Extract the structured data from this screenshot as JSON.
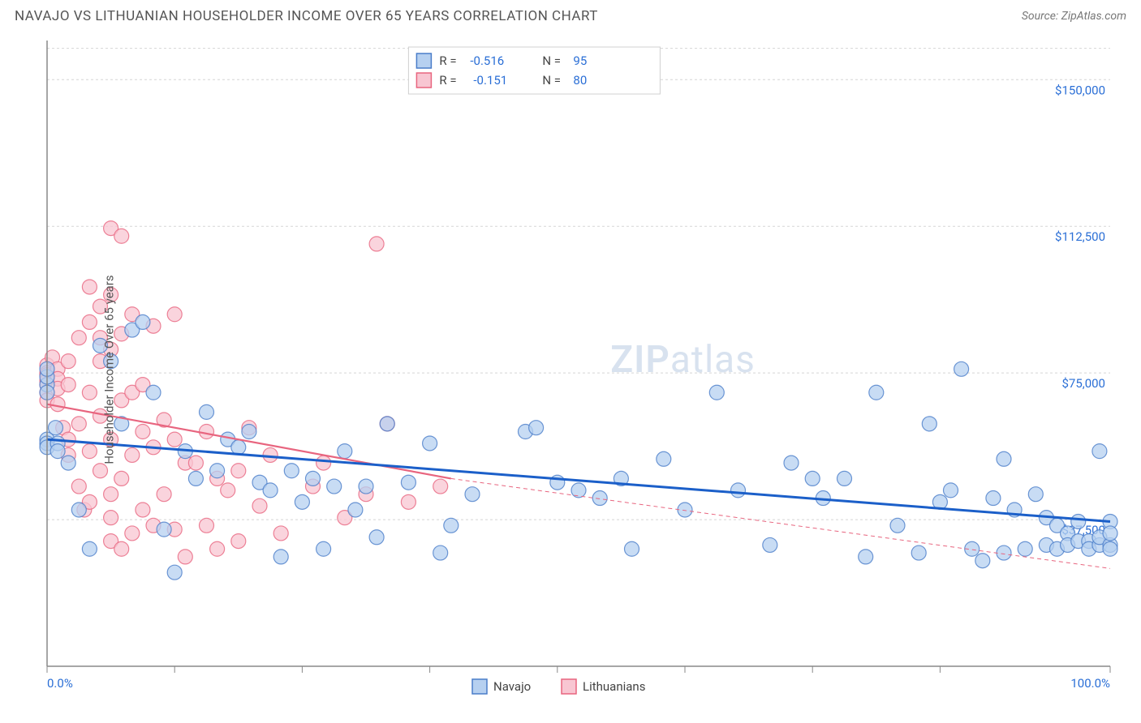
{
  "title": "NAVAJO VS LITHUANIAN HOUSEHOLDER INCOME OVER 65 YEARS CORRELATION CHART",
  "source": "Source: ZipAtlas.com",
  "ylabel": "Householder Income Over 65 years",
  "watermark": {
    "part1": "ZIP",
    "part2": "atlas"
  },
  "chart": {
    "type": "scatter",
    "xlim": [
      0,
      100
    ],
    "ylim": [
      0,
      160000
    ],
    "x_ticks": [
      0,
      12,
      24,
      36,
      48,
      60,
      72,
      84,
      100
    ],
    "x_tick_labels_show": {
      "0": "0.0%",
      "100": "100.0%"
    },
    "y_gridlines": [
      37500,
      75000,
      112500,
      150000
    ],
    "y_top_grid": 158000,
    "y_tick_labels": {
      "37500": "$37,500",
      "75000": "$75,000",
      "112500": "$112,500",
      "150000": "$150,000"
    },
    "background_color": "#ffffff",
    "grid_color": "#d5d5d5",
    "axis_color": "#888888",
    "marker_radius": 9,
    "series": [
      {
        "name": "Navajo",
        "color_fill": "#b6d0f0",
        "color_stroke": "#4a7dc9",
        "R": "-0.516",
        "N": "95",
        "trend": {
          "x1": 0,
          "y1": 58000,
          "x2": 100,
          "y2": 37000,
          "color": "#1b5fc9",
          "width": 3
        },
        "points": [
          [
            0,
            58000
          ],
          [
            0,
            57000
          ],
          [
            0,
            56000
          ],
          [
            0,
            72000
          ],
          [
            0,
            74000
          ],
          [
            0,
            76000
          ],
          [
            0,
            70000
          ],
          [
            0.8,
            61000
          ],
          [
            1,
            57000
          ],
          [
            1,
            55000
          ],
          [
            5,
            82000
          ],
          [
            6,
            78000
          ],
          [
            8,
            86000
          ],
          [
            9,
            88000
          ],
          [
            7,
            62000
          ],
          [
            3,
            40000
          ],
          [
            4,
            30000
          ],
          [
            2,
            52000
          ],
          [
            10,
            70000
          ],
          [
            11,
            35000
          ],
          [
            12,
            24000
          ],
          [
            13,
            55000
          ],
          [
            14,
            48000
          ],
          [
            15,
            65000
          ],
          [
            16,
            50000
          ],
          [
            17,
            58000
          ],
          [
            18,
            56000
          ],
          [
            19,
            60000
          ],
          [
            20,
            47000
          ],
          [
            21,
            45000
          ],
          [
            22,
            28000
          ],
          [
            23,
            50000
          ],
          [
            24,
            42000
          ],
          [
            25,
            48000
          ],
          [
            26,
            30000
          ],
          [
            27,
            46000
          ],
          [
            28,
            55000
          ],
          [
            29,
            40000
          ],
          [
            30,
            46000
          ],
          [
            31,
            33000
          ],
          [
            32,
            62000
          ],
          [
            34,
            47000
          ],
          [
            36,
            57000
          ],
          [
            38,
            36000
          ],
          [
            40,
            44000
          ],
          [
            37,
            29000
          ],
          [
            45,
            60000
          ],
          [
            46,
            61000
          ],
          [
            48,
            47000
          ],
          [
            50,
            45000
          ],
          [
            52,
            43000
          ],
          [
            54,
            48000
          ],
          [
            55,
            30000
          ],
          [
            58,
            53000
          ],
          [
            60,
            40000
          ],
          [
            63,
            70000
          ],
          [
            65,
            45000
          ],
          [
            68,
            31000
          ],
          [
            70,
            52000
          ],
          [
            72,
            48000
          ],
          [
            73,
            43000
          ],
          [
            75,
            48000
          ],
          [
            77,
            28000
          ],
          [
            78,
            70000
          ],
          [
            80,
            36000
          ],
          [
            82,
            29000
          ],
          [
            83,
            62000
          ],
          [
            84,
            42000
          ],
          [
            85,
            45000
          ],
          [
            86,
            76000
          ],
          [
            87,
            30000
          ],
          [
            88,
            27000
          ],
          [
            89,
            43000
          ],
          [
            90,
            53000
          ],
          [
            90,
            29000
          ],
          [
            91,
            40000
          ],
          [
            92,
            30000
          ],
          [
            93,
            44000
          ],
          [
            94,
            31000
          ],
          [
            94,
            38000
          ],
          [
            95,
            36000
          ],
          [
            95,
            30000
          ],
          [
            96,
            34000
          ],
          [
            96,
            31000
          ],
          [
            97,
            32000
          ],
          [
            97,
            37000
          ],
          [
            98,
            32000
          ],
          [
            98,
            30000
          ],
          [
            99,
            55000
          ],
          [
            99,
            31000
          ],
          [
            99,
            33000
          ],
          [
            100,
            37000
          ],
          [
            100,
            31000
          ],
          [
            100,
            34000
          ],
          [
            100,
            30000
          ]
        ]
      },
      {
        "name": "Lithuanians",
        "color_fill": "#f8c6d2",
        "color_stroke": "#e8657f",
        "R": "-0.151",
        "N": "80",
        "trend_solid": {
          "x1": 0,
          "y1": 67000,
          "x2": 38,
          "y2": 48000
        },
        "trend_dash": {
          "x1": 38,
          "y1": 48000,
          "x2": 100,
          "y2": 25000
        },
        "trend_color": "#e8657f",
        "points": [
          [
            0,
            77000
          ],
          [
            0,
            75000
          ],
          [
            0,
            74500
          ],
          [
            0,
            73000
          ],
          [
            0,
            72000
          ],
          [
            0,
            70000
          ],
          [
            0,
            68000
          ],
          [
            0.5,
            79000
          ],
          [
            1,
            76000
          ],
          [
            1,
            73500
          ],
          [
            1,
            71000
          ],
          [
            1,
            67000
          ],
          [
            1.5,
            61000
          ],
          [
            2,
            78000
          ],
          [
            2,
            72000
          ],
          [
            2,
            58000
          ],
          [
            2,
            54000
          ],
          [
            3,
            84000
          ],
          [
            3,
            62000
          ],
          [
            3,
            46000
          ],
          [
            3.5,
            40000
          ],
          [
            4,
            97000
          ],
          [
            4,
            88000
          ],
          [
            4,
            70000
          ],
          [
            4,
            55000
          ],
          [
            4,
            42000
          ],
          [
            5,
            92000
          ],
          [
            5,
            84000
          ],
          [
            5,
            78000
          ],
          [
            5,
            64000
          ],
          [
            5,
            50000
          ],
          [
            6,
            112000
          ],
          [
            6,
            95000
          ],
          [
            6,
            81000
          ],
          [
            6,
            58000
          ],
          [
            6,
            44000
          ],
          [
            6,
            38000
          ],
          [
            6,
            32000
          ],
          [
            7,
            110000
          ],
          [
            7,
            85000
          ],
          [
            7,
            68000
          ],
          [
            7,
            48000
          ],
          [
            7,
            30000
          ],
          [
            8,
            90000
          ],
          [
            8,
            70000
          ],
          [
            8,
            54000
          ],
          [
            8,
            34000
          ],
          [
            9,
            72000
          ],
          [
            9,
            60000
          ],
          [
            9,
            40000
          ],
          [
            10,
            87000
          ],
          [
            10,
            56000
          ],
          [
            10,
            36000
          ],
          [
            11,
            63000
          ],
          [
            11,
            44000
          ],
          [
            12,
            90000
          ],
          [
            12,
            58000
          ],
          [
            12,
            35000
          ],
          [
            13,
            52000
          ],
          [
            13,
            28000
          ],
          [
            14,
            52000
          ],
          [
            15,
            60000
          ],
          [
            15,
            36000
          ],
          [
            16,
            48000
          ],
          [
            16,
            30000
          ],
          [
            17,
            45000
          ],
          [
            18,
            50000
          ],
          [
            18,
            32000
          ],
          [
            19,
            61000
          ],
          [
            20,
            41000
          ],
          [
            21,
            54000
          ],
          [
            22,
            34000
          ],
          [
            25,
            46000
          ],
          [
            26,
            52000
          ],
          [
            28,
            38000
          ],
          [
            30,
            44000
          ],
          [
            31,
            108000
          ],
          [
            32,
            62000
          ],
          [
            34,
            42000
          ],
          [
            37,
            46000
          ]
        ]
      }
    ],
    "stats_legend": {
      "r_label": "R =",
      "n_label": "N ="
    },
    "bottom_legend": [
      {
        "label": "Navajo",
        "swatch": "blue"
      },
      {
        "label": "Lithuanians",
        "swatch": "pink"
      }
    ]
  }
}
